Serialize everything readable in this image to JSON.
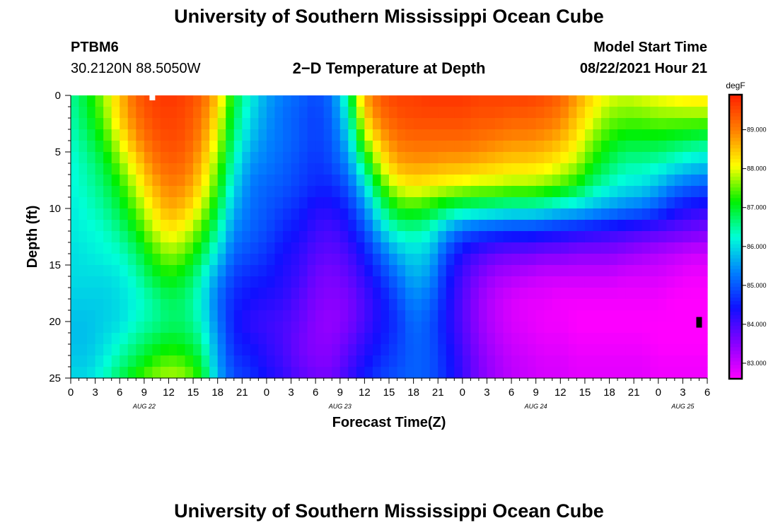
{
  "header": {
    "title": "University of Southern Mississippi Ocean Cube",
    "station_id": "PTBM6",
    "station_coords": "30.2120N  88.5050W",
    "subtitle": "2−D Temperature at Depth",
    "model_label": "Model Start Time",
    "model_time": "08/22/2021 Hour 21"
  },
  "footer": {
    "title": "University of Southern Mississippi Ocean Cube"
  },
  "chart_data": {
    "type": "heatmap",
    "title": "2−D Temperature at Depth",
    "xlabel": "Forecast Time(Z)",
    "ylabel": "Depth (ft)",
    "colorbar_label": "degF",
    "x_range_hours": [
      0,
      78
    ],
    "y_range_ft": [
      0,
      25
    ],
    "x_tick_labels": [
      "0",
      "3",
      "6",
      "9",
      "12",
      "15",
      "18",
      "21",
      "0",
      "3",
      "6",
      "9",
      "12",
      "15",
      "18",
      "21",
      "0",
      "3",
      "6",
      "9",
      "12",
      "15",
      "18",
      "21",
      "0",
      "3",
      "6"
    ],
    "y_tick_labels": [
      "0",
      "5",
      "10",
      "15",
      "20",
      "25"
    ],
    "day_labels": [
      "AUG 22",
      "AUG 23",
      "AUG 24",
      "AUG 25"
    ],
    "colorbar_range": [
      82.6,
      89.9
    ],
    "colorbar_ticks": [
      "83.000",
      "84.000",
      "85.000",
      "86.000",
      "87.000",
      "88.000",
      "89.000"
    ],
    "colormap": [
      "#ff00ff",
      "#8800ff",
      "#1010ff",
      "#0080ff",
      "#00ffd8",
      "#00f000",
      "#ffff00",
      "#ff8000",
      "#ff2000"
    ],
    "time_keys_hours": [
      0,
      2,
      4,
      6,
      8,
      10,
      12,
      14,
      16,
      18,
      20,
      22,
      24,
      26,
      28,
      30,
      32,
      34,
      36,
      38,
      40,
      42,
      44,
      46,
      48,
      50,
      52,
      54,
      56,
      58,
      60,
      62,
      64,
      66,
      68,
      70,
      72,
      74,
      76,
      78
    ],
    "depth_keys_ft": [
      0,
      2,
      4,
      6,
      8,
      10,
      12,
      14,
      16,
      18,
      20,
      22,
      24,
      25
    ],
    "temperature_degF": [
      [
        86.5,
        86.4,
        86.3,
        86.2,
        86.2,
        86.1,
        86.1,
        86.0,
        86.0,
        85.9,
        85.8,
        85.8,
        85.9,
        86.0
      ],
      [
        87.0,
        86.9,
        86.7,
        86.5,
        86.4,
        86.3,
        86.2,
        86.1,
        86.0,
        85.9,
        85.8,
        85.8,
        85.9,
        86.0
      ],
      [
        87.7,
        87.5,
        87.2,
        86.9,
        86.7,
        86.5,
        86.3,
        86.2,
        86.0,
        85.9,
        85.9,
        86.0,
        86.2,
        86.3
      ],
      [
        88.5,
        88.4,
        88.0,
        87.6,
        87.2,
        86.9,
        86.6,
        86.3,
        86.1,
        86.0,
        86.0,
        86.3,
        86.6,
        86.8
      ],
      [
        89.3,
        89.1,
        88.8,
        88.3,
        87.9,
        87.5,
        87.1,
        86.7,
        86.4,
        86.2,
        86.3,
        86.6,
        87.0,
        87.3
      ],
      [
        89.6,
        89.5,
        89.3,
        89.0,
        88.6,
        88.2,
        87.8,
        87.3,
        86.9,
        86.5,
        86.5,
        86.9,
        87.4,
        87.6
      ],
      [
        89.7,
        89.6,
        89.5,
        89.3,
        89.0,
        88.7,
        88.2,
        87.7,
        87.2,
        86.8,
        86.7,
        87.1,
        87.6,
        87.8
      ],
      [
        89.6,
        89.5,
        89.4,
        89.2,
        88.9,
        88.5,
        88.0,
        87.5,
        87.0,
        86.7,
        86.7,
        87.0,
        87.5,
        87.7
      ],
      [
        89.3,
        89.1,
        88.9,
        88.6,
        88.3,
        87.9,
        87.4,
        86.9,
        86.4,
        86.2,
        86.3,
        86.6,
        87.0,
        87.2
      ],
      [
        88.5,
        88.2,
        87.9,
        87.6,
        87.3,
        86.9,
        86.5,
        86.0,
        85.5,
        85.2,
        85.3,
        85.5,
        85.6,
        85.7
      ],
      [
        87.0,
        86.8,
        86.6,
        86.3,
        86.0,
        85.7,
        85.4,
        85.1,
        84.8,
        84.6,
        84.5,
        84.6,
        84.8,
        84.9
      ],
      [
        86.2,
        86.0,
        85.8,
        85.5,
        85.3,
        85.2,
        85.1,
        84.9,
        84.6,
        84.4,
        84.2,
        84.4,
        84.6,
        84.7
      ],
      [
        85.6,
        85.5,
        85.4,
        85.3,
        85.1,
        85.0,
        84.9,
        84.7,
        84.5,
        84.3,
        84.1,
        84.2,
        84.3,
        84.4
      ],
      [
        85.3,
        85.2,
        85.2,
        85.1,
        85.0,
        84.8,
        84.6,
        84.4,
        84.3,
        84.2,
        84.0,
        84.0,
        84.1,
        84.2
      ],
      [
        85.1,
        85.0,
        85.0,
        84.9,
        84.8,
        84.6,
        84.4,
        84.2,
        84.1,
        83.9,
        83.8,
        83.7,
        83.8,
        83.9
      ],
      [
        84.9,
        84.8,
        84.8,
        84.7,
        84.6,
        84.3,
        84.1,
        83.9,
        83.7,
        83.6,
        83.5,
        83.5,
        83.6,
        83.7
      ],
      [
        85.2,
        85.1,
        85.0,
        84.9,
        84.6,
        84.3,
        84.0,
        83.8,
        83.6,
        83.5,
        83.4,
        83.5,
        83.6,
        83.7
      ],
      [
        86.6,
        86.2,
        85.8,
        85.4,
        85.0,
        84.6,
        84.3,
        84.0,
        83.8,
        83.6,
        83.6,
        83.8,
        84.0,
        84.1
      ],
      [
        88.7,
        88.3,
        87.6,
        86.8,
        86.0,
        85.4,
        84.9,
        84.5,
        84.2,
        84.0,
        84.0,
        84.2,
        84.4,
        84.5
      ],
      [
        89.4,
        89.1,
        88.6,
        88.0,
        87.3,
        86.5,
        85.8,
        85.1,
        84.7,
        84.4,
        84.4,
        84.5,
        84.7,
        84.8
      ],
      [
        89.6,
        89.4,
        89.1,
        88.7,
        88.0,
        87.2,
        86.4,
        85.7,
        85.2,
        84.9,
        84.7,
        84.8,
        84.9,
        85.0
      ],
      [
        89.6,
        89.5,
        89.2,
        88.8,
        88.2,
        87.3,
        86.5,
        86.0,
        85.7,
        85.4,
        85.2,
        85.1,
        85.1,
        85.1
      ],
      [
        89.7,
        89.5,
        89.2,
        88.8,
        88.1,
        87.1,
        86.3,
        85.8,
        85.5,
        85.2,
        85.0,
        85.0,
        85.0,
        85.0
      ],
      [
        89.7,
        89.5,
        89.2,
        88.7,
        88.0,
        86.8,
        85.6,
        84.9,
        84.6,
        84.5,
        84.4,
        84.5,
        84.6,
        84.6
      ],
      [
        89.7,
        89.5,
        89.2,
        88.7,
        87.9,
        86.6,
        85.1,
        84.3,
        84.0,
        83.9,
        83.9,
        84.0,
        84.1,
        84.1
      ],
      [
        89.6,
        89.4,
        89.1,
        88.6,
        87.8,
        86.5,
        84.9,
        84.0,
        83.6,
        83.4,
        83.4,
        83.5,
        83.6,
        83.6
      ],
      [
        89.6,
        89.4,
        89.0,
        88.5,
        87.8,
        86.4,
        84.8,
        83.8,
        83.3,
        83.1,
        83.1,
        83.2,
        83.3,
        83.3
      ],
      [
        89.6,
        89.3,
        88.9,
        88.4,
        87.7,
        86.3,
        84.7,
        83.7,
        83.2,
        82.9,
        82.9,
        83.0,
        83.1,
        83.1
      ],
      [
        89.6,
        89.3,
        88.9,
        88.4,
        87.7,
        86.3,
        84.7,
        83.7,
        83.1,
        82.8,
        82.8,
        82.9,
        83.0,
        83.0
      ],
      [
        89.5,
        89.2,
        88.8,
        88.3,
        87.6,
        86.2,
        84.6,
        83.6,
        83.0,
        82.8,
        82.7,
        82.8,
        82.9,
        82.9
      ],
      [
        89.3,
        89.0,
        88.6,
        88.1,
        87.4,
        86.0,
        84.5,
        83.6,
        83.0,
        82.7,
        82.7,
        82.8,
        82.9,
        82.9
      ],
      [
        88.8,
        88.5,
        88.2,
        87.8,
        87.1,
        85.9,
        84.4,
        83.5,
        83.0,
        82.7,
        82.6,
        82.7,
        82.8,
        82.8
      ],
      [
        88.3,
        88.0,
        87.6,
        87.2,
        86.6,
        85.7,
        84.3,
        83.5,
        83.0,
        82.7,
        82.6,
        82.7,
        82.8,
        82.8
      ],
      [
        88.0,
        87.6,
        87.2,
        86.8,
        86.3,
        85.5,
        84.2,
        83.5,
        83.0,
        82.7,
        82.6,
        82.7,
        82.8,
        82.8
      ],
      [
        87.9,
        87.5,
        87.0,
        86.5,
        86.1,
        85.3,
        84.1,
        83.4,
        82.9,
        82.7,
        82.6,
        82.7,
        82.8,
        82.8
      ],
      [
        88.0,
        87.5,
        87.0,
        86.5,
        86.0,
        85.2,
        84.0,
        83.3,
        82.9,
        82.7,
        82.6,
        82.7,
        82.8,
        82.8
      ],
      [
        88.1,
        87.6,
        87.0,
        86.4,
        85.7,
        84.9,
        83.9,
        83.2,
        82.9,
        82.7,
        82.6,
        82.6,
        82.7,
        82.7
      ],
      [
        88.2,
        87.6,
        86.9,
        86.2,
        85.3,
        84.5,
        83.8,
        83.1,
        82.8,
        82.6,
        82.6,
        82.6,
        82.7,
        82.7
      ],
      [
        88.3,
        87.6,
        86.8,
        86.0,
        85.1,
        84.3,
        83.7,
        83.0,
        82.7,
        82.6,
        82.6,
        82.6,
        82.7,
        82.7
      ],
      [
        88.3,
        87.6,
        86.7,
        85.9,
        85.0,
        84.2,
        83.6,
        83.0,
        82.7,
        82.6,
        82.6,
        82.6,
        82.7,
        82.7
      ]
    ]
  }
}
